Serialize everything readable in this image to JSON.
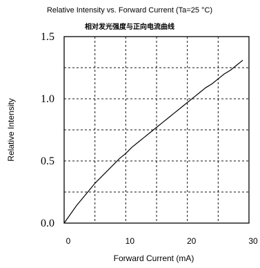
{
  "chart_data": {
    "type": "line",
    "title": "Relative Intensity vs. Forward Current (Ta=25 °C)",
    "subtitle": "相对发光强度与正向电流曲线",
    "xlabel": "Forward Current (mA)",
    "ylabel": "Relative Intensity",
    "xlim": [
      0,
      30
    ],
    "ylim": [
      0,
      1.5
    ],
    "x_ticks": [
      0,
      10,
      20,
      30
    ],
    "y_ticks": [
      0.0,
      0.5,
      1.0,
      1.5
    ],
    "x_tick_labels": [
      "0",
      "10",
      "20",
      "30"
    ],
    "y_tick_labels": [
      "0.0",
      "0.5",
      "1.0",
      "1.5"
    ],
    "grid": true,
    "series": [
      {
        "x": [
          0,
          1,
          2,
          3,
          4,
          5,
          6,
          7,
          8,
          9,
          10,
          11,
          12,
          13,
          14,
          15,
          16,
          17,
          18,
          19,
          20,
          21,
          22,
          23,
          24,
          25,
          26,
          27,
          28,
          29
        ],
        "values": [
          0.0,
          0.07,
          0.14,
          0.2,
          0.26,
          0.32,
          0.37,
          0.42,
          0.47,
          0.52,
          0.56,
          0.61,
          0.65,
          0.69,
          0.73,
          0.77,
          0.81,
          0.85,
          0.89,
          0.93,
          0.97,
          1.01,
          1.05,
          1.09,
          1.12,
          1.16,
          1.2,
          1.23,
          1.27,
          1.31
        ]
      }
    ]
  }
}
